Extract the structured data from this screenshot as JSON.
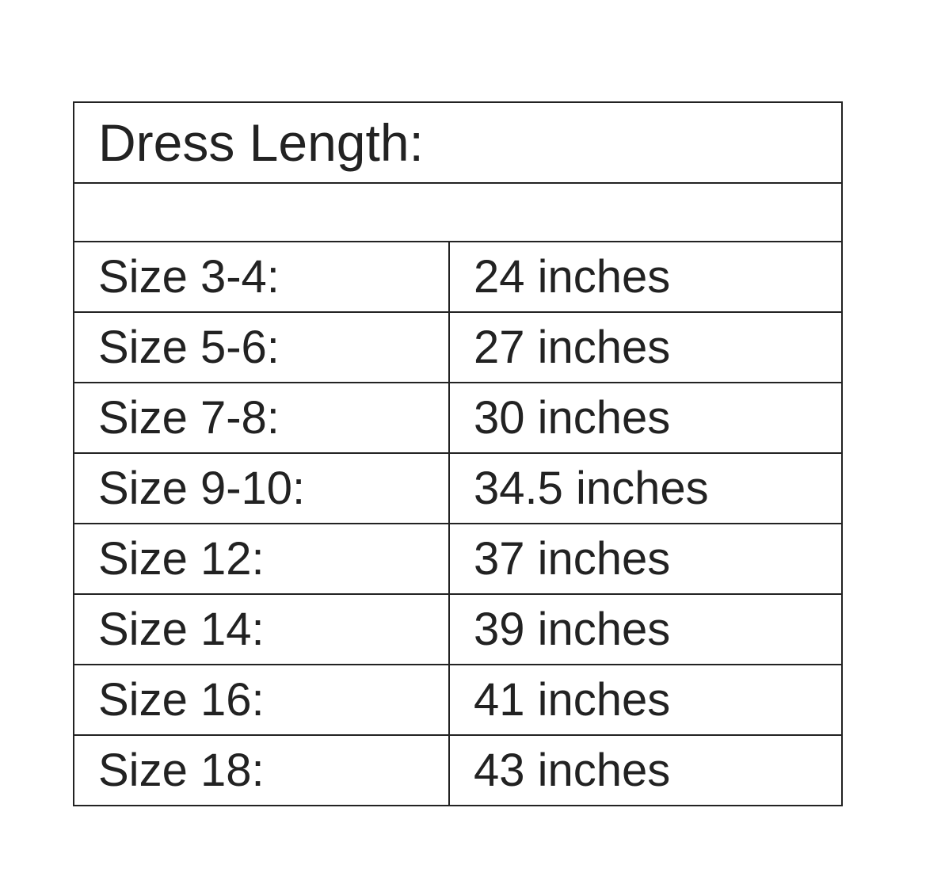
{
  "title": "Dress Length:",
  "rows": [
    {
      "size": "Size 3-4:",
      "length": "24 inches"
    },
    {
      "size": "Size 5-6:",
      "length": "27 inches"
    },
    {
      "size": "Size 7-8:",
      "length": "30 inches"
    },
    {
      "size": "Size 9-10:",
      "length": "34.5 inches"
    },
    {
      "size": "Size 12:",
      "length": "37 inches"
    },
    {
      "size": "Size 14:",
      "length": "39 inches"
    },
    {
      "size": "Size 16:",
      "length": "41 inches"
    },
    {
      "size": "Size 18:",
      "length": "43 inches"
    }
  ]
}
